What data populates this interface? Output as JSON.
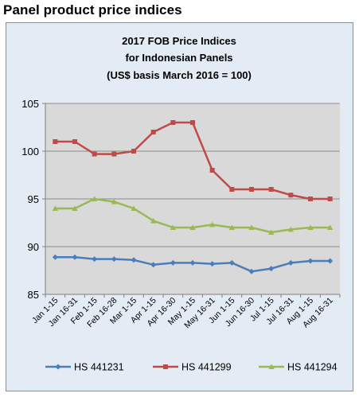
{
  "page": {
    "heading": "Panel product price indices"
  },
  "chart_data": {
    "type": "line",
    "title_lines": [
      "2017 FOB Price Indices",
      "for Indonesian Panels",
      "(US$ basis March 2016 = 100)"
    ],
    "xlabel": "",
    "ylabel": "",
    "ylim": [
      85,
      105
    ],
    "yticks": [
      85,
      90,
      95,
      100,
      105
    ],
    "grid": true,
    "legend_position": "bottom",
    "categories": [
      "Jan 1-15",
      "Jan 16-31",
      "Feb 1-15",
      "Feb 16-28",
      "Mar 1-15",
      "Apr 1-15",
      "Apr 16-30",
      "May 1-15",
      "May 16-31",
      "Jun 1-15",
      "Jun 16-30",
      "Jul 1-15",
      "Jul 16-31",
      "Aug 1-15",
      "Aug 16-31"
    ],
    "series": [
      {
        "name": "HS 441231",
        "color": "#4a7ebb",
        "marker": "diamond",
        "values": [
          88.9,
          88.9,
          88.7,
          88.7,
          88.6,
          88.1,
          88.3,
          88.3,
          88.2,
          88.3,
          87.4,
          87.7,
          88.3,
          88.5,
          88.5
        ]
      },
      {
        "name": "HS 441299",
        "color": "#be4b48",
        "marker": "square",
        "values": [
          101,
          101,
          99.7,
          99.7,
          100,
          102,
          103,
          103,
          98,
          96,
          96,
          96,
          95.4,
          95,
          95
        ]
      },
      {
        "name": "HS 441294",
        "color": "#98b954",
        "marker": "triangle",
        "values": [
          94,
          94,
          95,
          94.7,
          94,
          92.7,
          92,
          92,
          92.3,
          92,
          92,
          91.5,
          91.8,
          92,
          92
        ]
      }
    ]
  }
}
